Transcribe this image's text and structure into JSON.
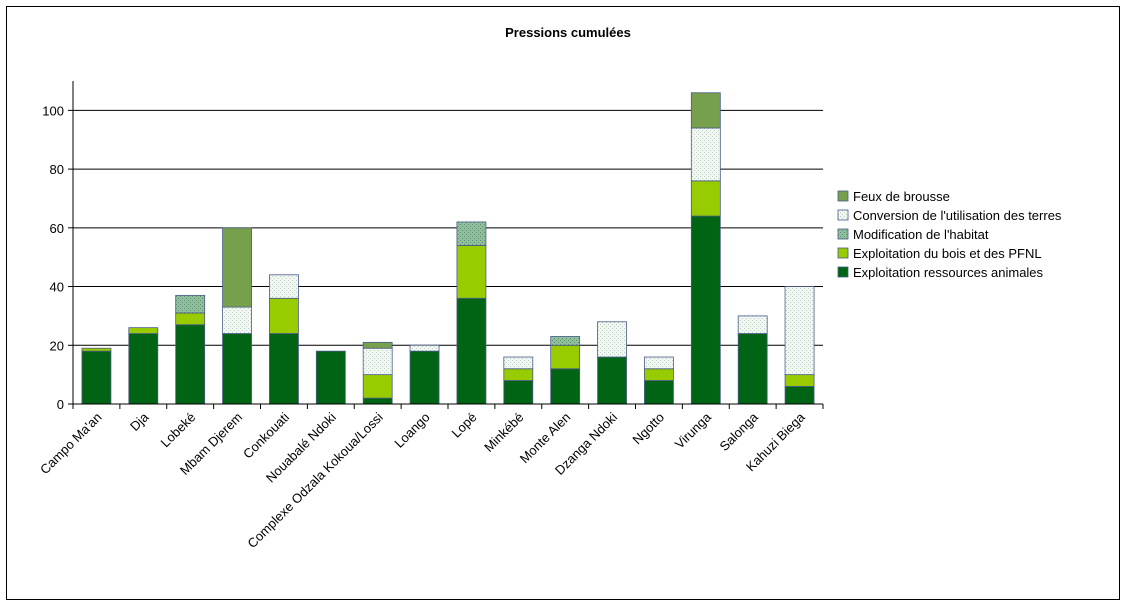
{
  "chart_data": {
    "type": "bar",
    "stacked": true,
    "title": "Pressions cumulées",
    "xlabel": "",
    "ylabel": "",
    "ylim": [
      0,
      110
    ],
    "yticks": [
      0,
      20,
      40,
      60,
      80,
      100
    ],
    "grid": true,
    "legend_position": "right",
    "categories": [
      "Campo Ma'an",
      "Dja",
      "Lobeké",
      "Mbam Djerem",
      "Conkouati",
      "Nouabalé Ndoki",
      "Complexe Odzala Kokoua/Lossi",
      "Loango",
      "Lopé",
      "Minkébé",
      "Monte Alen",
      "Dzanga Ndoki",
      "Ngotto",
      "Virunga",
      "Salonga",
      "Kahuzi Biega"
    ],
    "series": [
      {
        "name": "Exploitation ressources animales",
        "color": "#006414",
        "pattern": "solid",
        "values": [
          18,
          24,
          27,
          24,
          24,
          18,
          2,
          18,
          36,
          8,
          12,
          16,
          8,
          64,
          24,
          6
        ]
      },
      {
        "name": "Exploitation du bois et des PFNL",
        "color": "#99cc00",
        "pattern": "solid",
        "values": [
          1,
          2,
          4,
          0,
          12,
          0,
          8,
          0,
          18,
          4,
          8,
          0,
          4,
          12,
          0,
          4
        ]
      },
      {
        "name": "Modification de l'habitat",
        "color": "#8fbf9f",
        "pattern": "dots-dark",
        "values": [
          0,
          0,
          6,
          0,
          0,
          0,
          0,
          0,
          8,
          0,
          3,
          0,
          0,
          0,
          0,
          0
        ]
      },
      {
        "name": "Conversion de l'utilisation des terres",
        "color": "#c6dccb",
        "pattern": "dots-light",
        "values": [
          0,
          0,
          0,
          9,
          8,
          0,
          9,
          2,
          0,
          4,
          0,
          12,
          4,
          18,
          6,
          30
        ]
      },
      {
        "name": "Feux de brousse",
        "color": "#76a04c",
        "pattern": "solid",
        "values": [
          0,
          0,
          0,
          27,
          0,
          0,
          2,
          0,
          0,
          0,
          0,
          0,
          0,
          12,
          0,
          0
        ]
      }
    ],
    "legend_order": [
      "Feux de brousse",
      "Conversion de l'utilisation des terres",
      "Modification de l'habitat",
      "Exploitation du bois et des PFNL",
      "Exploitation ressources animales"
    ]
  }
}
